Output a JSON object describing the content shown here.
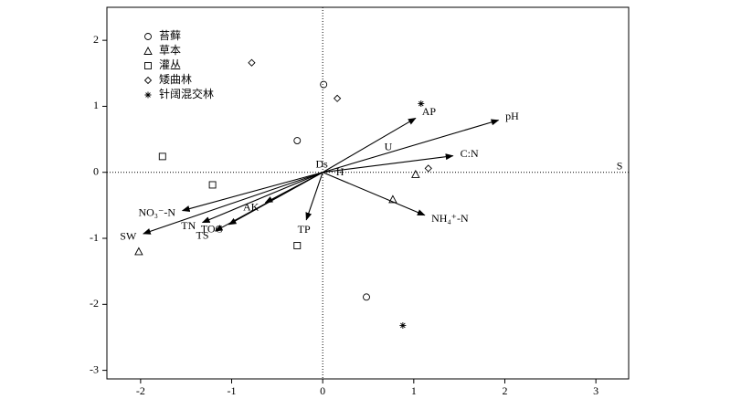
{
  "chart_data": {
    "type": "biplot",
    "xlim": [
      -2.37,
      3.36
    ],
    "ylim": [
      -3.13,
      2.5
    ],
    "xticks": [
      -2,
      -1,
      0,
      1,
      2,
      3
    ],
    "yticks": [
      -3,
      -2,
      -1,
      0,
      1,
      2
    ],
    "color": "#000000",
    "series": [
      {
        "name": "苔藓",
        "marker": "circle",
        "x": [
          -0.28,
          0.01,
          0.48
        ],
        "y": [
          0.48,
          1.33,
          -1.89
        ]
      },
      {
        "name": "草本",
        "marker": "triangle",
        "x": [
          -2.02,
          0.77,
          1.02
        ],
        "y": [
          -1.2,
          -0.41,
          -0.03
        ]
      },
      {
        "name": "灌丛",
        "marker": "square",
        "x": [
          -1.76,
          -1.21,
          -0.28
        ],
        "y": [
          0.24,
          -0.19,
          -1.11
        ]
      },
      {
        "name": "矮曲林",
        "marker": "diamond",
        "x": [
          -0.78,
          0.16,
          1.16
        ],
        "y": [
          1.66,
          1.12,
          0.06
        ]
      },
      {
        "name": "针阔混交林",
        "marker": "asterisk",
        "x": [
          1.08,
          0.88
        ],
        "y": [
          1.04,
          -2.32
        ]
      }
    ],
    "vectors": [
      {
        "name": "AP",
        "x": 1.02,
        "y": 0.82
      },
      {
        "name": "pH",
        "x": 1.93,
        "y": 0.79
      },
      {
        "name": "C:N",
        "x": 1.43,
        "y": 0.25
      },
      {
        "name": "NH₄⁺-N",
        "x": 1.12,
        "y": -0.65
      },
      {
        "name": "TP",
        "x": -0.18,
        "y": -0.72
      },
      {
        "name": "AK",
        "x": -0.63,
        "y": -0.46
      },
      {
        "name": "TOC",
        "x": -1.03,
        "y": -0.79
      },
      {
        "name": "TS",
        "x": -1.18,
        "y": -0.89
      },
      {
        "name": "TN",
        "x": -1.32,
        "y": -0.76
      },
      {
        "name": "SW",
        "x": -1.97,
        "y": -0.93
      },
      {
        "name": "NO₃⁻-N",
        "x": -1.54,
        "y": -0.58
      }
    ],
    "labels": [
      {
        "text": "U",
        "x": 0.72,
        "y": 0.37
      },
      {
        "text": "Ds",
        "x": -0.01,
        "y": 0.11
      },
      {
        "text": "H",
        "x": 0.19,
        "y": -0.01
      },
      {
        "text": "S",
        "x": 3.26,
        "y": 0.08
      }
    ]
  }
}
